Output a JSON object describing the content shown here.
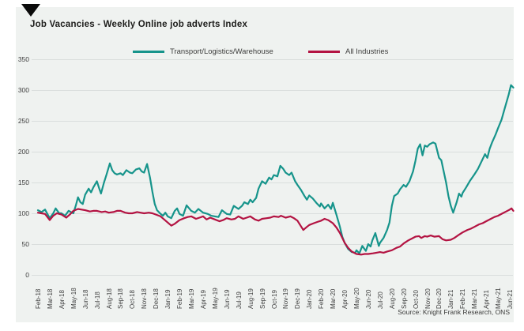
{
  "title": "Job Vacancies - Weekly Online job adverts Index",
  "source": "Source: Knight Frank Research, ONS",
  "colors": {
    "panel_bg": "#eff2f0",
    "gridline": "#dadedd",
    "transport_line": "#16948b",
    "all_industries_line": "#b31342",
    "title_text": "#1d1d1b",
    "tick_text": "#404040",
    "corner_triangle": "#0b0b0b"
  },
  "chart_data": {
    "type": "line",
    "title": "Job Vacancies - Weekly Online job adverts Index",
    "xlabel": "",
    "ylabel": "",
    "ylim": [
      0,
      350
    ],
    "yticks": [
      350,
      300,
      250,
      200,
      150,
      100,
      50,
      0
    ],
    "grid": "horizontal",
    "legend_position": "top",
    "x_categories": [
      "Feb-18",
      "Mar-18",
      "Apr-18",
      "May-18",
      "Jun-18",
      "Jul-18",
      "Aug-18",
      "Sep-18",
      "Oct-18",
      "Nov-18",
      "Dec-18",
      "Jan-19",
      "Feb-19",
      "Mar-19",
      "Apr-19",
      "May-19",
      "Jun-19",
      "Jul-19",
      "Aug-19",
      "Sep-19",
      "Oct-19",
      "Nov-19",
      "Dec-19",
      "Jan-20",
      "Feb-20",
      "Mar-20",
      "Apr-20",
      "May-20",
      "Jun-20",
      "Jul-20",
      "Aug-20",
      "Sep-20",
      "Oct-20",
      "Nov-20",
      "Dec-20",
      "Jan-21",
      "Feb-21",
      "Mar-21",
      "Apr-21",
      "May-21",
      "Jun-21"
    ],
    "x_unit": "month index from Feb-18, weekly sampled points",
    "series": [
      {
        "name": "Transport/Logistics/Warehouse",
        "color": "#16948b",
        "points": [
          [
            0.0,
            105
          ],
          [
            0.3,
            102
          ],
          [
            0.6,
            106
          ],
          [
            1.0,
            92
          ],
          [
            1.3,
            100
          ],
          [
            1.5,
            108
          ],
          [
            1.8,
            100
          ],
          [
            2.0,
            100
          ],
          [
            2.3,
            96
          ],
          [
            2.6,
            104
          ],
          [
            3.0,
            100
          ],
          [
            3.2,
            112
          ],
          [
            3.4,
            126
          ],
          [
            3.6,
            118
          ],
          [
            3.8,
            115
          ],
          [
            4.0,
            130
          ],
          [
            4.3,
            140
          ],
          [
            4.5,
            134
          ],
          [
            4.7,
            142
          ],
          [
            5.0,
            152
          ],
          [
            5.2,
            140
          ],
          [
            5.35,
            132
          ],
          [
            5.6,
            150
          ],
          [
            5.8,
            162
          ],
          [
            6.1,
            181
          ],
          [
            6.3,
            170
          ],
          [
            6.5,
            165
          ],
          [
            6.7,
            163
          ],
          [
            7.0,
            165
          ],
          [
            7.2,
            162
          ],
          [
            7.5,
            170
          ],
          [
            7.8,
            166
          ],
          [
            8.0,
            165
          ],
          [
            8.3,
            171
          ],
          [
            8.6,
            173
          ],
          [
            8.8,
            168
          ],
          [
            9.0,
            166
          ],
          [
            9.25,
            180
          ],
          [
            9.5,
            158
          ],
          [
            9.7,
            135
          ],
          [
            9.9,
            115
          ],
          [
            10.1,
            105
          ],
          [
            10.4,
            99
          ],
          [
            10.6,
            96
          ],
          [
            10.8,
            101
          ],
          [
            11.0,
            95
          ],
          [
            11.3,
            92
          ],
          [
            11.6,
            104
          ],
          [
            11.8,
            108
          ],
          [
            12.0,
            99
          ],
          [
            12.3,
            96
          ],
          [
            12.6,
            113
          ],
          [
            13.0,
            104
          ],
          [
            13.3,
            101
          ],
          [
            13.6,
            107
          ],
          [
            14.0,
            101
          ],
          [
            14.4,
            99
          ],
          [
            14.7,
            96
          ],
          [
            15.0,
            95
          ],
          [
            15.3,
            94
          ],
          [
            15.6,
            105
          ],
          [
            16.0,
            99
          ],
          [
            16.3,
            98
          ],
          [
            16.6,
            112
          ],
          [
            17.0,
            107
          ],
          [
            17.3,
            112
          ],
          [
            17.5,
            118
          ],
          [
            17.8,
            115
          ],
          [
            18.0,
            122
          ],
          [
            18.2,
            118
          ],
          [
            18.5,
            125
          ],
          [
            18.7,
            140
          ],
          [
            19.0,
            152
          ],
          [
            19.3,
            148
          ],
          [
            19.6,
            158
          ],
          [
            19.8,
            155
          ],
          [
            20.0,
            162
          ],
          [
            20.3,
            160
          ],
          [
            20.55,
            177
          ],
          [
            20.8,
            172
          ],
          [
            21.0,
            166
          ],
          [
            21.3,
            162
          ],
          [
            21.5,
            166
          ],
          [
            21.8,
            152
          ],
          [
            22.0,
            146
          ],
          [
            22.3,
            138
          ],
          [
            22.6,
            128
          ],
          [
            22.8,
            122
          ],
          [
            23.0,
            129
          ],
          [
            23.3,
            124
          ],
          [
            23.6,
            117
          ],
          [
            23.9,
            111
          ],
          [
            24.0,
            116
          ],
          [
            24.3,
            108
          ],
          [
            24.6,
            114
          ],
          [
            24.85,
            107
          ],
          [
            25.0,
            117
          ],
          [
            25.3,
            98
          ],
          [
            25.6,
            78
          ],
          [
            25.8,
            62
          ],
          [
            26.0,
            52
          ],
          [
            26.3,
            42
          ],
          [
            26.6,
            37
          ],
          [
            26.9,
            36
          ],
          [
            27.0,
            40
          ],
          [
            27.25,
            35
          ],
          [
            27.5,
            47
          ],
          [
            27.8,
            39
          ],
          [
            28.0,
            50
          ],
          [
            28.2,
            46
          ],
          [
            28.35,
            56
          ],
          [
            28.6,
            68
          ],
          [
            28.9,
            47
          ],
          [
            29.0,
            52
          ],
          [
            29.3,
            60
          ],
          [
            29.6,
            73
          ],
          [
            29.8,
            85
          ],
          [
            30.0,
            112
          ],
          [
            30.2,
            128
          ],
          [
            30.5,
            132
          ],
          [
            30.7,
            139
          ],
          [
            31.0,
            146
          ],
          [
            31.2,
            143
          ],
          [
            31.5,
            152
          ],
          [
            31.8,
            168
          ],
          [
            32.0,
            185
          ],
          [
            32.2,
            205
          ],
          [
            32.4,
            212
          ],
          [
            32.6,
            194
          ],
          [
            32.8,
            210
          ],
          [
            33.0,
            208
          ],
          [
            33.2,
            212
          ],
          [
            33.5,
            215
          ],
          [
            33.7,
            213
          ],
          [
            34.0,
            190
          ],
          [
            34.2,
            186
          ],
          [
            34.4,
            168
          ],
          [
            34.6,
            150
          ],
          [
            34.8,
            128
          ],
          [
            35.0,
            112
          ],
          [
            35.2,
            101
          ],
          [
            35.5,
            118
          ],
          [
            35.7,
            132
          ],
          [
            35.9,
            127
          ],
          [
            36.0,
            133
          ],
          [
            36.3,
            142
          ],
          [
            36.6,
            152
          ],
          [
            37.0,
            163
          ],
          [
            37.3,
            172
          ],
          [
            37.6,
            184
          ],
          [
            37.9,
            196
          ],
          [
            38.1,
            190
          ],
          [
            38.3,
            205
          ],
          [
            38.5,
            215
          ],
          [
            38.8,
            228
          ],
          [
            39.0,
            238
          ],
          [
            39.3,
            252
          ],
          [
            39.6,
            272
          ],
          [
            39.9,
            292
          ],
          [
            40.1,
            308
          ],
          [
            40.3,
            304
          ]
        ]
      },
      {
        "name": "All Industries",
        "color": "#b31342",
        "points": [
          [
            0.0,
            101
          ],
          [
            0.3,
            100
          ],
          [
            0.6,
            99
          ],
          [
            1.0,
            89
          ],
          [
            1.3,
            96
          ],
          [
            1.6,
            100
          ],
          [
            2.0,
            98
          ],
          [
            2.4,
            93
          ],
          [
            2.7,
            98
          ],
          [
            3.0,
            104
          ],
          [
            3.4,
            107
          ],
          [
            3.7,
            106
          ],
          [
            4.0,
            105
          ],
          [
            4.4,
            103
          ],
          [
            4.7,
            104
          ],
          [
            5.0,
            104
          ],
          [
            5.4,
            102
          ],
          [
            5.7,
            103
          ],
          [
            6.0,
            101
          ],
          [
            6.4,
            102
          ],
          [
            6.7,
            104
          ],
          [
            7.0,
            104
          ],
          [
            7.4,
            101
          ],
          [
            7.7,
            100
          ],
          [
            8.0,
            100
          ],
          [
            8.4,
            102
          ],
          [
            8.7,
            101
          ],
          [
            9.0,
            100
          ],
          [
            9.4,
            101
          ],
          [
            9.7,
            100
          ],
          [
            10.0,
            98
          ],
          [
            10.4,
            95
          ],
          [
            10.7,
            90
          ],
          [
            11.0,
            85
          ],
          [
            11.3,
            80
          ],
          [
            11.6,
            83
          ],
          [
            12.0,
            89
          ],
          [
            12.4,
            92
          ],
          [
            12.7,
            94
          ],
          [
            13.0,
            95
          ],
          [
            13.4,
            91
          ],
          [
            13.7,
            93
          ],
          [
            14.0,
            95
          ],
          [
            14.3,
            90
          ],
          [
            14.6,
            93
          ],
          [
            15.0,
            90
          ],
          [
            15.4,
            87
          ],
          [
            15.7,
            89
          ],
          [
            16.0,
            92
          ],
          [
            16.4,
            90
          ],
          [
            16.7,
            91
          ],
          [
            17.0,
            95
          ],
          [
            17.4,
            91
          ],
          [
            17.7,
            93
          ],
          [
            18.0,
            95
          ],
          [
            18.4,
            90
          ],
          [
            18.7,
            88
          ],
          [
            19.0,
            91
          ],
          [
            19.4,
            92
          ],
          [
            19.7,
            93
          ],
          [
            20.0,
            95
          ],
          [
            20.4,
            94
          ],
          [
            20.6,
            96
          ],
          [
            21.0,
            93
          ],
          [
            21.4,
            95
          ],
          [
            21.7,
            92
          ],
          [
            22.0,
            88
          ],
          [
            22.3,
            79
          ],
          [
            22.5,
            73
          ],
          [
            22.8,
            78
          ],
          [
            23.0,
            81
          ],
          [
            23.4,
            84
          ],
          [
            23.7,
            86
          ],
          [
            24.0,
            88
          ],
          [
            24.3,
            91
          ],
          [
            24.6,
            89
          ],
          [
            25.0,
            84
          ],
          [
            25.3,
            77
          ],
          [
            25.6,
            68
          ],
          [
            25.8,
            60
          ],
          [
            26.0,
            52
          ],
          [
            26.3,
            44
          ],
          [
            26.6,
            38
          ],
          [
            27.0,
            34
          ],
          [
            27.4,
            33
          ],
          [
            27.7,
            34
          ],
          [
            28.0,
            34
          ],
          [
            28.4,
            35
          ],
          [
            28.7,
            36
          ],
          [
            29.0,
            37
          ],
          [
            29.3,
            36
          ],
          [
            29.6,
            38
          ],
          [
            30.0,
            40
          ],
          [
            30.4,
            44
          ],
          [
            30.7,
            46
          ],
          [
            31.0,
            51
          ],
          [
            31.4,
            56
          ],
          [
            31.7,
            59
          ],
          [
            32.0,
            62
          ],
          [
            32.3,
            63
          ],
          [
            32.5,
            60
          ],
          [
            32.8,
            63
          ],
          [
            33.0,
            62
          ],
          [
            33.3,
            64
          ],
          [
            33.6,
            62
          ],
          [
            34.0,
            63
          ],
          [
            34.3,
            58
          ],
          [
            34.6,
            56
          ],
          [
            35.0,
            57
          ],
          [
            35.3,
            60
          ],
          [
            35.6,
            64
          ],
          [
            36.0,
            69
          ],
          [
            36.4,
            73
          ],
          [
            36.7,
            75
          ],
          [
            37.0,
            78
          ],
          [
            37.4,
            82
          ],
          [
            37.7,
            84
          ],
          [
            38.0,
            87
          ],
          [
            38.4,
            91
          ],
          [
            38.7,
            94
          ],
          [
            39.0,
            96
          ],
          [
            39.4,
            100
          ],
          [
            39.7,
            103
          ],
          [
            40.0,
            106
          ],
          [
            40.15,
            108
          ],
          [
            40.3,
            104
          ]
        ]
      }
    ]
  },
  "legend": {
    "items": [
      {
        "label": "Transport/Logistics/Warehouse",
        "color": "#16948b"
      },
      {
        "label": "All Industries",
        "color": "#b31342"
      }
    ]
  }
}
